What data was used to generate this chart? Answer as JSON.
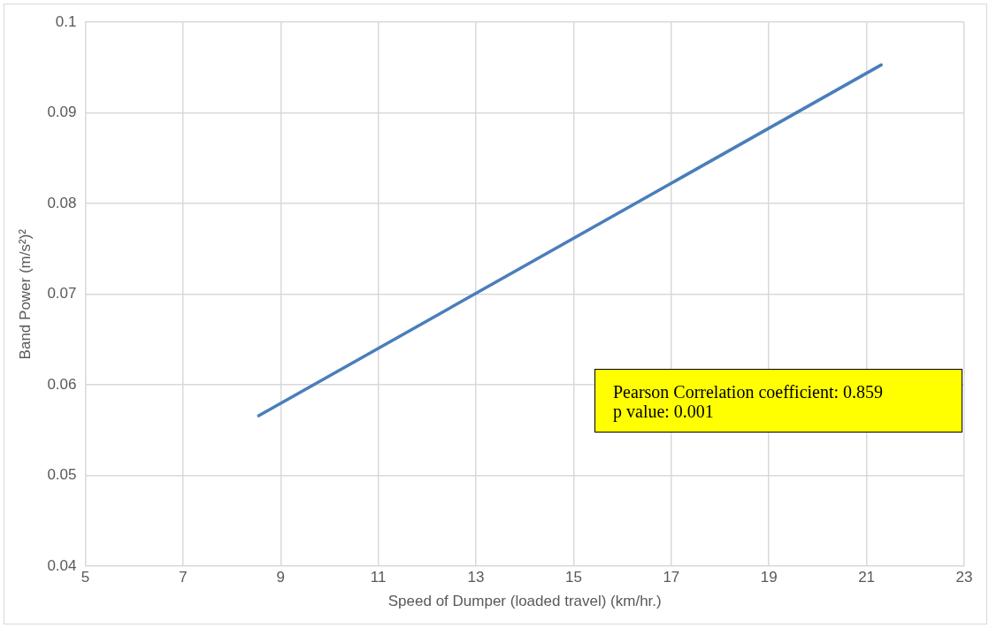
{
  "chart_data": {
    "type": "line",
    "xlabel": "Speed of Dumper (loaded travel) (km/hr.)",
    "ylabel": "Band Power (m/s²)²",
    "x": [
      8.55,
      21.3
    ],
    "series": [
      {
        "color": "#4a7ebb",
        "values": [
          0.0566,
          0.0953
        ]
      }
    ],
    "xlim": [
      5,
      23
    ],
    "xticks": [
      5,
      7,
      9,
      11,
      13,
      15,
      17,
      19,
      21,
      23
    ],
    "ylim": [
      0.04,
      0.1
    ],
    "yticks": [
      0.04,
      0.05,
      0.06,
      0.07,
      0.08,
      0.09,
      0.1
    ],
    "grid": true,
    "legend": false,
    "marker": "none",
    "line_style": "solid",
    "annotations": [
      "Pearson Correlation coefficient: 0.859\np value: 0.001"
    ]
  }
}
